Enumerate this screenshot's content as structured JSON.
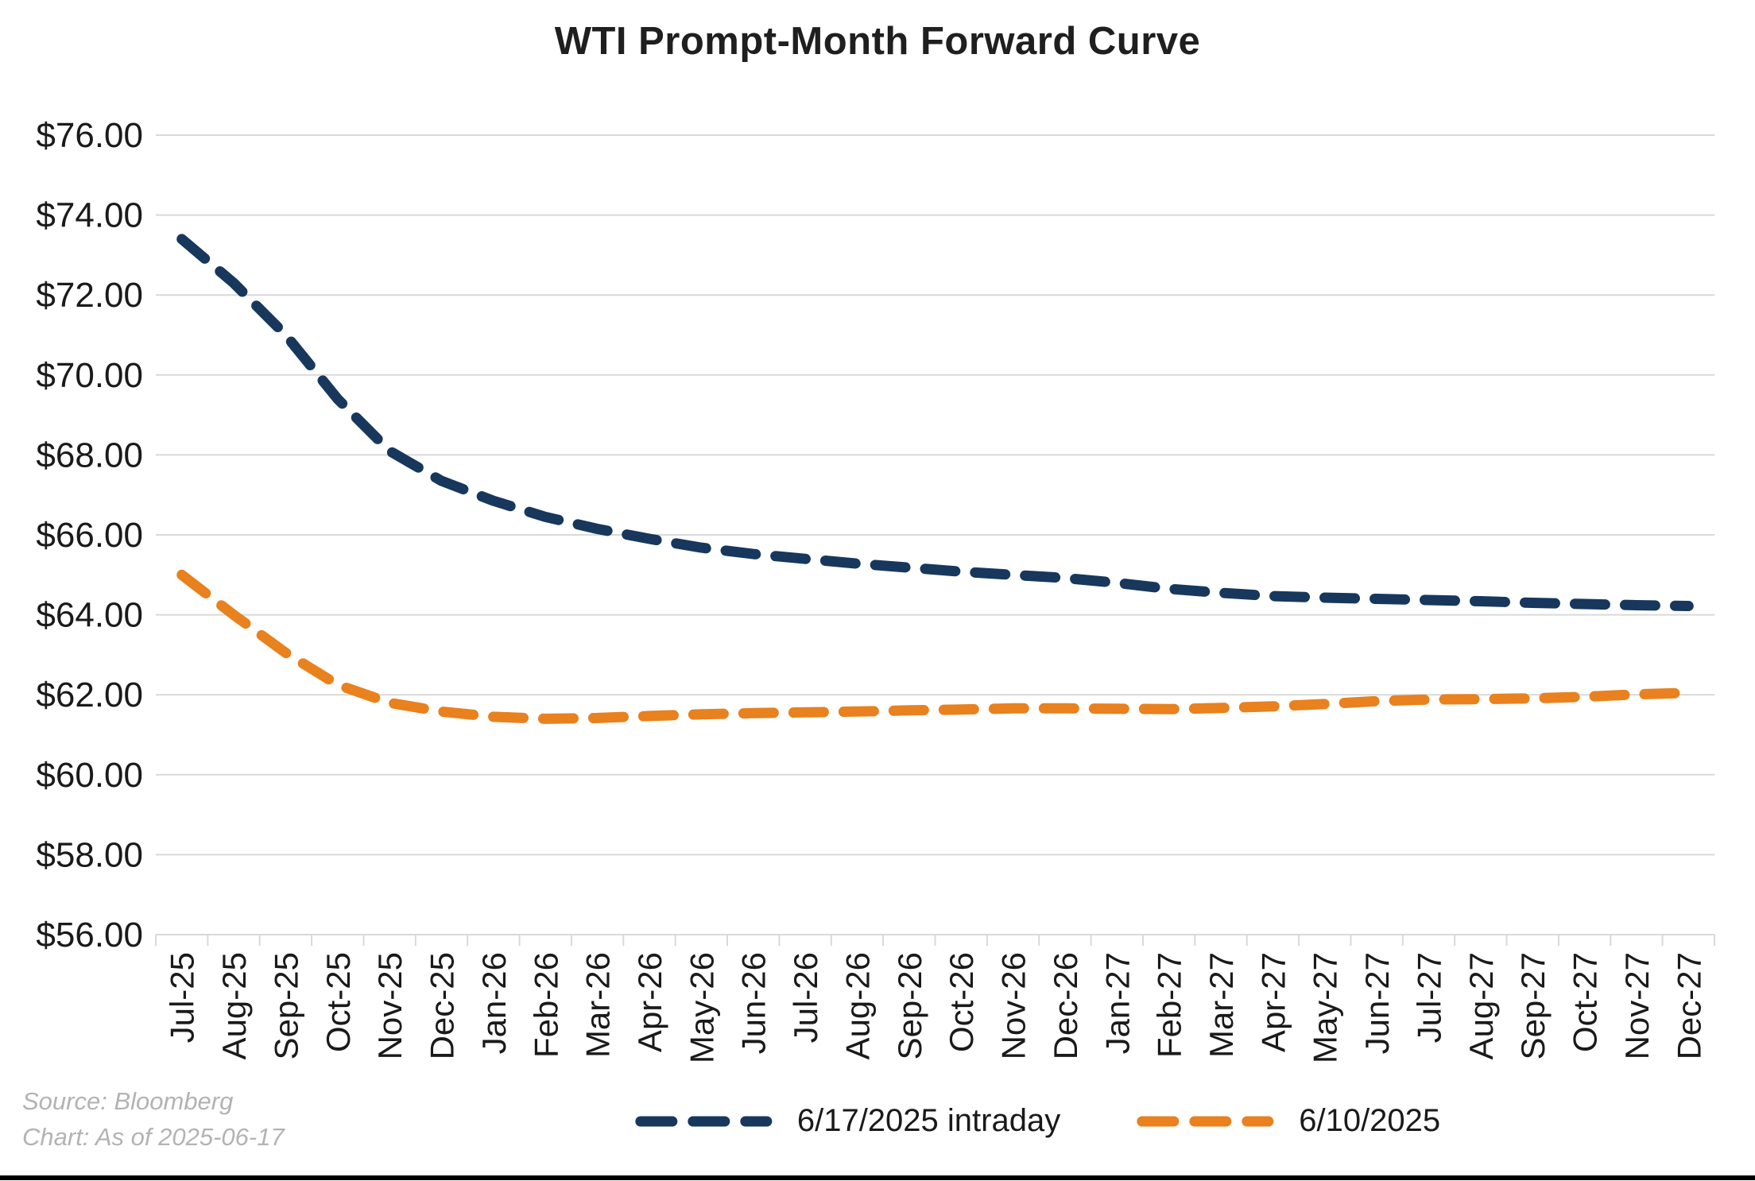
{
  "title": "WTI Prompt-Month Forward Curve",
  "colors": {
    "navy": "#17375d",
    "orange": "#e8811e",
    "grid": "#d9d9d9",
    "text": "#1a1a1a",
    "title_text": "#1f1f1f",
    "source_text": "#b3b3b3",
    "bottom_border": "#000000"
  },
  "legend": [
    {
      "label": "6/17/2025 intraday",
      "color": "#17375d"
    },
    {
      "label": "6/10/2025",
      "color": "#e8811e"
    }
  ],
  "source": {
    "line1": "Source: Bloomberg",
    "line2": "Chart: As of 2025-06-17"
  },
  "chart_data": {
    "type": "line",
    "title": "WTI Prompt-Month Forward Curve",
    "xlabel": "",
    "ylabel": "",
    "ylim": [
      56,
      76
    ],
    "grid": true,
    "legend_position": "bottom",
    "line_style": "dashed",
    "x": [
      "Jul-25",
      "Aug-25",
      "Sep-25",
      "Oct-25",
      "Nov-25",
      "Dec-25",
      "Jan-26",
      "Feb-26",
      "Mar-26",
      "Apr-26",
      "May-26",
      "Jun-26",
      "Jul-26",
      "Aug-26",
      "Sep-26",
      "Oct-26",
      "Nov-26",
      "Dec-26",
      "Jan-27",
      "Feb-27",
      "Mar-27",
      "Apr-27",
      "May-27",
      "Jun-27",
      "Jul-27",
      "Aug-27",
      "Sep-27",
      "Oct-27",
      "Nov-27",
      "Dec-27"
    ],
    "yticks": {
      "values": [
        76,
        74,
        72,
        70,
        68,
        66,
        64,
        62,
        60,
        58,
        56
      ],
      "labels": [
        "$76.00",
        "$74.00",
        "$72.00",
        "$70.00",
        "$68.00",
        "$66.00",
        "$64.00",
        "$62.00",
        "$60.00",
        "$58.00",
        "$56.00"
      ]
    },
    "series": [
      {
        "name": "6/17/2025 intraday",
        "color": "#17375d",
        "dashed": true,
        "values": [
          73.4,
          72.3,
          71.0,
          69.4,
          68.1,
          67.35,
          66.85,
          66.45,
          66.15,
          65.9,
          65.68,
          65.52,
          65.4,
          65.28,
          65.18,
          65.08,
          65.0,
          64.92,
          64.8,
          64.65,
          64.55,
          64.47,
          64.43,
          64.4,
          64.37,
          64.34,
          64.3,
          64.27,
          64.24,
          64.22
        ]
      },
      {
        "name": "6/10/2025",
        "color": "#e8811e",
        "dashed": true,
        "values": [
          65.0,
          64.0,
          63.05,
          62.25,
          61.8,
          61.58,
          61.45,
          61.4,
          61.42,
          61.47,
          61.51,
          61.54,
          61.56,
          61.58,
          61.61,
          61.63,
          61.66,
          61.66,
          61.65,
          61.64,
          61.67,
          61.71,
          61.77,
          61.84,
          61.88,
          61.89,
          61.91,
          61.95,
          62.01,
          62.05
        ]
      }
    ]
  }
}
